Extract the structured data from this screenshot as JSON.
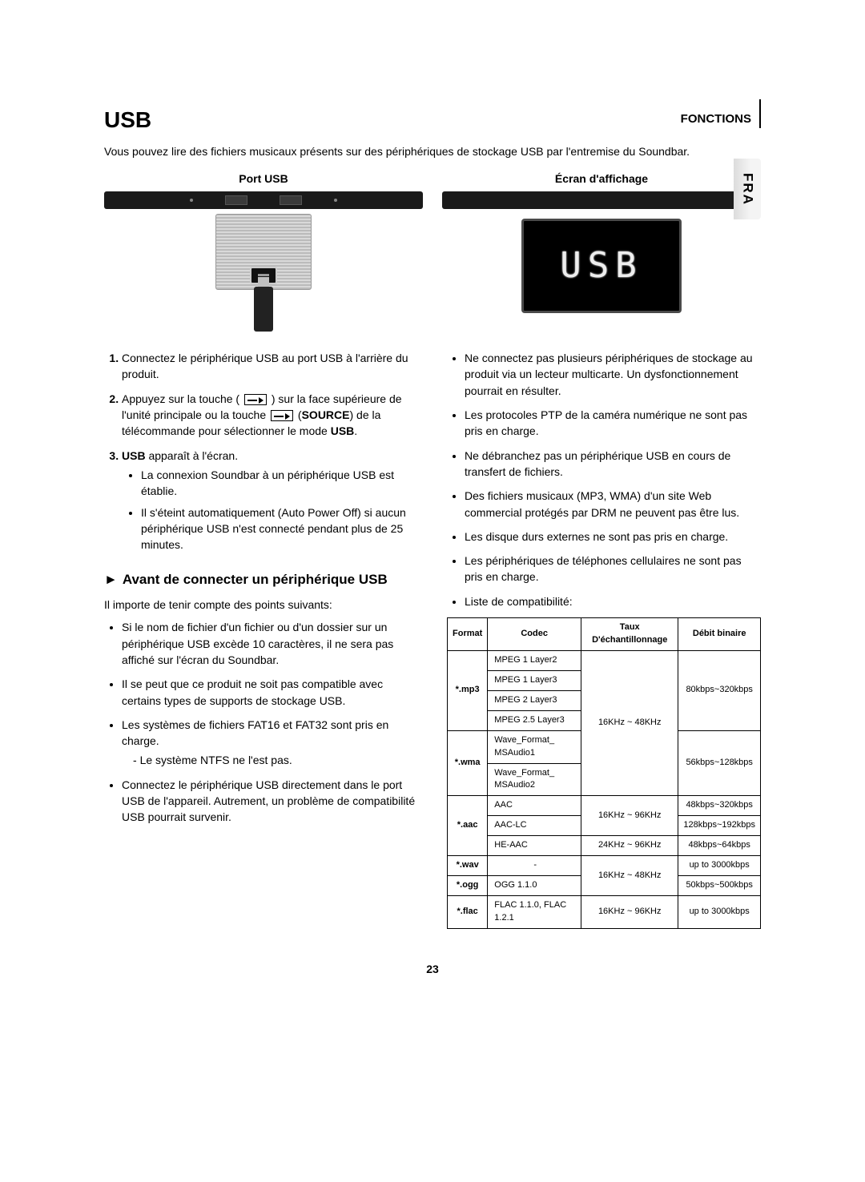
{
  "header": {
    "section_label": "FONCTIONS",
    "lang_tab": "FRA"
  },
  "title": "USB",
  "intro": "Vous pouvez lire des fichiers musicaux présents sur des périphériques de stockage USB par l'entremise du Soundbar.",
  "figures": {
    "left_caption": "Port USB",
    "right_caption": "Écran d'affichage",
    "display_text": "USB"
  },
  "steps": [
    {
      "n": "1.",
      "text": "Connectez le périphérique USB au port USB à l'arrière du produit."
    },
    {
      "n": "2.",
      "pre": "Appuyez sur la touche (",
      "mid": ") sur la face supérieure de l'unité principale ou la touche ",
      "post_b": "SOURCE",
      "post2": ") de la télécommande pour sélectionner le mode ",
      "mode": "USB",
      "end": "."
    },
    {
      "n": "3.",
      "b": "USB",
      "rest": " apparaît à l'écran."
    }
  ],
  "steps_sub": [
    "La connexion Soundbar à un périphérique USB est établie.",
    "Il s'éteint automatiquement (Auto Power Off) si aucun périphérique USB n'est connecté pendant plus de 25 minutes."
  ],
  "subhead": "Avant de connecter un périphérique USB",
  "lead": "Il importe de tenir compte des points suivants:",
  "left_bullets": [
    "Si le nom de fichier d'un fichier ou d'un dossier sur un périphérique USB excède 10 caractères, il ne sera pas affiché sur l'écran du Soundbar.",
    "Il se peut que ce produit ne soit pas compatible avec certains types de supports de stockage USB.",
    "Les systèmes de fichiers FAT16 et FAT32 sont pris en charge.",
    "Connectez le périphérique USB directement dans le port USB de l'appareil. Autrement, un problème de compatibilité USB pourrait survenir."
  ],
  "left_dash": "Le système NTFS ne l'est pas.",
  "right_bullets": [
    "Ne connectez pas plusieurs périphériques de stockage au produit via un lecteur multicarte. Un dysfonctionnement pourrait en résulter.",
    "Les protocoles PTP de la caméra numérique ne sont pas pris en charge.",
    "Ne débranchez pas un périphérique USB en cours de transfert de fichiers.",
    "Des fichiers musicaux (MP3, WMA) d'un site Web commercial protégés par DRM ne peuvent pas être lus.",
    "Les disque durs externes ne sont pas pris en charge.",
    "Les périphériques de téléphones cellulaires ne sont pas pris en charge.",
    "Liste de compatibilité:"
  ],
  "table": {
    "headers": [
      "Format",
      "Codec",
      "Taux D'échantillonnage",
      "Débit binaire"
    ],
    "rows": [
      {
        "format": "*.mp3",
        "codecs": [
          "MPEG 1 Layer2",
          "MPEG 1 Layer3",
          "MPEG 2 Layer3",
          "MPEG 2.5 Layer3"
        ],
        "rate": "16KHz ~ 48KHz",
        "bitrate": "80kbps~320kbps"
      },
      {
        "format": "*.wma",
        "codecs": [
          "Wave_Format_ MSAudio1",
          "Wave_Format_ MSAudio2"
        ],
        "rate": "",
        "bitrate": "56kbps~128kbps"
      },
      {
        "format": "*.aac",
        "codecs_multi": [
          {
            "c": "AAC",
            "rate": "16KHz ~ 96KHz",
            "bit": "48kbps~320kbps"
          },
          {
            "c": "AAC-LC",
            "rate": "",
            "bit": "128kbps~192kbps"
          },
          {
            "c": "HE-AAC",
            "rate": "24KHz ~ 96KHz",
            "bit": "48kbps~64kbps"
          }
        ]
      },
      {
        "format": "*.wav",
        "codec": "-",
        "rate": "16KHz ~ 48KHz",
        "bitrate": "up to 3000kbps"
      },
      {
        "format": "*.ogg",
        "codec": "OGG 1.1.0",
        "rate": "",
        "bitrate": "50kbps~500kbps"
      },
      {
        "format": "*.flac",
        "codec": "FLAC 1.1.0, FLAC 1.2.1",
        "rate": "16KHz ~ 96KHz",
        "bitrate": "up to 3000kbps"
      }
    ]
  },
  "page_number": "23"
}
